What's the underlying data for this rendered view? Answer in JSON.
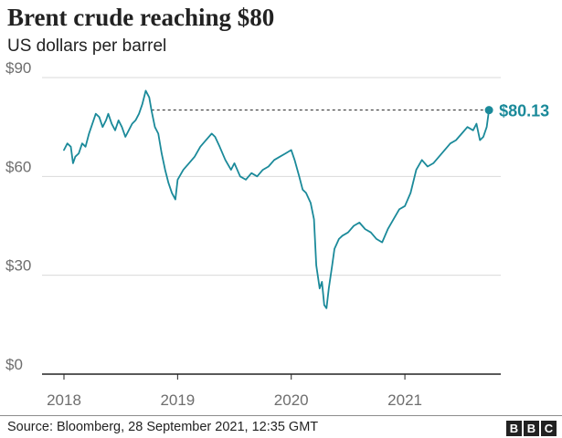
{
  "header": {
    "title": "Brent crude reaching $80",
    "subtitle": "US dollars per barrel"
  },
  "footer": {
    "source": "Source: Bloomberg, 28 September 2021, 12:35 GMT",
    "logo_letters": [
      "B",
      "B",
      "C"
    ]
  },
  "colors": {
    "line": "#1b8a9a",
    "grid": "#d9d9d9",
    "axis": "#222222",
    "reference_line": "#222222"
  },
  "chart_data": {
    "type": "line",
    "title": "Brent crude reaching $80",
    "subtitle": "US dollars per barrel",
    "y_ticks": [
      0,
      30,
      60,
      90
    ],
    "y_tick_labels": [
      "$0",
      "$30",
      "$60",
      "$90"
    ],
    "x_ticks": [
      2018,
      2019,
      2020,
      2021
    ],
    "x_tick_labels": [
      "2018",
      "2019",
      "2020",
      "2021"
    ],
    "xlim": [
      2018.0,
      2021.9
    ],
    "ylim": [
      0,
      90
    ],
    "grid": "horizontal",
    "end_label": "$80.13",
    "reference_line": {
      "value": 80.13,
      "from_x": 2018.77,
      "style": "dashed"
    },
    "series": [
      {
        "x": [
          2018.0,
          2018.03,
          2018.06,
          2018.08,
          2018.1,
          2018.13,
          2018.16,
          2018.19,
          2018.22,
          2018.25,
          2018.28,
          2018.31,
          2018.34,
          2018.37,
          2018.39,
          2018.42,
          2018.45,
          2018.48,
          2018.51,
          2018.54,
          2018.57,
          2018.6,
          2018.63,
          2018.66,
          2018.69,
          2018.72,
          2018.75,
          2018.77,
          2018.8,
          2018.83,
          2018.86,
          2018.89,
          2018.92,
          2018.95,
          2018.98,
          2019.0,
          2019.05,
          2019.1,
          2019.15,
          2019.2,
          2019.25,
          2019.3,
          2019.33,
          2019.37,
          2019.42,
          2019.47,
          2019.5,
          2019.55,
          2019.6,
          2019.65,
          2019.7,
          2019.75,
          2019.8,
          2019.85,
          2019.9,
          2019.95,
          2020.0,
          2020.03,
          2020.07,
          2020.1,
          2020.13,
          2020.17,
          2020.2,
          2020.22,
          2020.25,
          2020.27,
          2020.29,
          2020.31,
          2020.33,
          2020.36,
          2020.38,
          2020.42,
          2020.45,
          2020.5,
          2020.55,
          2020.6,
          2020.65,
          2020.7,
          2020.75,
          2020.8,
          2020.85,
          2020.9,
          2020.95,
          2021.0,
          2021.05,
          2021.1,
          2021.15,
          2021.2,
          2021.25,
          2021.3,
          2021.35,
          2021.4,
          2021.45,
          2021.5,
          2021.55,
          2021.6,
          2021.63,
          2021.66,
          2021.69,
          2021.72,
          2021.74
        ],
        "y": [
          68,
          70,
          69,
          64,
          66,
          67,
          70,
          69,
          73,
          76,
          79,
          78,
          75,
          77,
          79,
          76,
          74,
          77,
          75,
          72,
          74,
          76,
          77,
          79,
          82,
          86,
          84,
          80,
          75,
          73,
          67,
          62,
          58,
          55,
          53,
          59,
          62,
          64,
          66,
          69,
          71,
          73,
          72,
          69,
          65,
          62,
          64,
          60,
          59,
          61,
          60,
          62,
          63,
          65,
          66,
          67,
          68,
          65,
          60,
          56,
          55,
          52,
          47,
          33,
          26,
          28,
          21,
          20,
          26,
          33,
          38,
          41,
          42,
          43,
          45,
          46,
          44,
          43,
          41,
          40,
          44,
          47,
          50,
          51,
          55,
          62,
          65,
          63,
          64,
          66,
          68,
          70,
          71,
          73,
          75,
          74,
          76,
          71,
          72,
          75,
          80.13
        ]
      }
    ]
  }
}
